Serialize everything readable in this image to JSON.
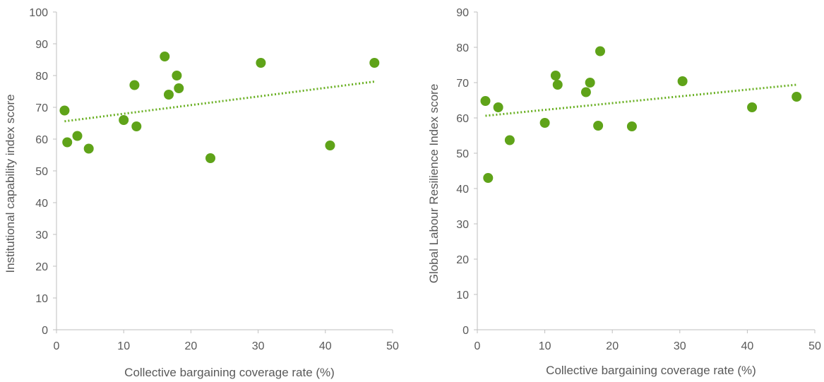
{
  "colors": {
    "marker": "#5FA319",
    "trendline": "#6AB023",
    "axis": "#BFBFBF",
    "text": "#595959"
  },
  "chart_data": [
    {
      "type": "scatter",
      "title": "",
      "xlabel": "Collective bargaining coverage rate (%)",
      "ylabel": "Institutional capability index score",
      "xlim": [
        0,
        50
      ],
      "ylim": [
        0,
        100
      ],
      "xticks": [
        0,
        10,
        20,
        30,
        40,
        50
      ],
      "yticks": [
        0,
        10,
        20,
        30,
        40,
        50,
        60,
        70,
        80,
        90,
        100
      ],
      "grid": false,
      "legend": "none",
      "points": [
        {
          "x": 1.2,
          "y": 69
        },
        {
          "x": 1.6,
          "y": 59
        },
        {
          "x": 3.1,
          "y": 61
        },
        {
          "x": 4.8,
          "y": 57
        },
        {
          "x": 10.0,
          "y": 66
        },
        {
          "x": 11.6,
          "y": 77
        },
        {
          "x": 11.9,
          "y": 64
        },
        {
          "x": 16.1,
          "y": 86
        },
        {
          "x": 16.7,
          "y": 74
        },
        {
          "x": 17.9,
          "y": 80
        },
        {
          "x": 18.2,
          "y": 76
        },
        {
          "x": 22.9,
          "y": 54
        },
        {
          "x": 30.4,
          "y": 84
        },
        {
          "x": 40.7,
          "y": 58
        },
        {
          "x": 47.3,
          "y": 84
        }
      ],
      "trendline": {
        "x": [
          1.2,
          47.3
        ],
        "y": [
          65.6,
          78.1
        ]
      }
    },
    {
      "type": "scatter",
      "title": "",
      "xlabel": "Collective bargaining coverage rate (%)",
      "ylabel": "Global Labour Resilience Index score",
      "xlim": [
        0,
        50
      ],
      "ylim": [
        0,
        90
      ],
      "xticks": [
        0,
        10,
        20,
        30,
        40,
        50
      ],
      "yticks": [
        0,
        10,
        20,
        30,
        40,
        50,
        60,
        70,
        80,
        90
      ],
      "grid": false,
      "legend": "none",
      "points": [
        {
          "x": 1.2,
          "y": 64.8
        },
        {
          "x": 1.6,
          "y": 43
        },
        {
          "x": 3.1,
          "y": 63
        },
        {
          "x": 4.8,
          "y": 53.7
        },
        {
          "x": 10.0,
          "y": 58.6
        },
        {
          "x": 11.6,
          "y": 72
        },
        {
          "x": 11.9,
          "y": 69.4
        },
        {
          "x": 16.1,
          "y": 67.3
        },
        {
          "x": 16.7,
          "y": 70
        },
        {
          "x": 17.9,
          "y": 57.8
        },
        {
          "x": 18.2,
          "y": 78.9
        },
        {
          "x": 22.9,
          "y": 57.6
        },
        {
          "x": 30.4,
          "y": 70.4
        },
        {
          "x": 40.7,
          "y": 63
        },
        {
          "x": 47.3,
          "y": 66
        }
      ],
      "trendline": {
        "x": [
          1.2,
          47.3
        ],
        "y": [
          60.6,
          69.4
        ]
      }
    }
  ]
}
